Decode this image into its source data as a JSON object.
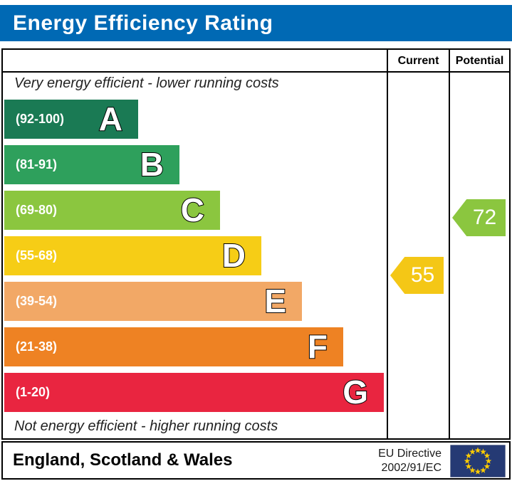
{
  "header": {
    "title": "Energy Efficiency Rating",
    "bg_color": "#0069b4"
  },
  "table": {
    "columns": {
      "current": "Current",
      "potential": "Potential"
    },
    "top_note": "Very energy efficient - lower running costs",
    "bottom_note": "Not energy efficient - higher running costs",
    "bands": [
      {
        "letter": "A",
        "range": "(92-100)",
        "color": "#1a7a54"
      },
      {
        "letter": "B",
        "range": "(81-91)",
        "color": "#2ea05c"
      },
      {
        "letter": "C",
        "range": "(69-80)",
        "color": "#8bc63f"
      },
      {
        "letter": "D",
        "range": "(55-68)",
        "color": "#f6cd16"
      },
      {
        "letter": "E",
        "range": "(39-54)",
        "color": "#f2a866"
      },
      {
        "letter": "F",
        "range": "(21-38)",
        "color": "#ee8223"
      },
      {
        "letter": "G",
        "range": "(1-20)",
        "color": "#e92540"
      }
    ],
    "current": {
      "value": "55",
      "color": "#f4c716",
      "band": "D"
    },
    "potential": {
      "value": "72",
      "color": "#8bc63f",
      "band": "C"
    }
  },
  "footer": {
    "region": "England, Scotland & Wales",
    "directive_line1": "EU Directive",
    "directive_line2": "2002/91/EC",
    "flag": {
      "name": "eu-flag",
      "bg": "#253a74",
      "star_color": "#ffcc00"
    }
  },
  "chart_data": {
    "type": "bar",
    "title": "Energy Efficiency Rating",
    "categories": [
      "A",
      "B",
      "C",
      "D",
      "E",
      "F",
      "G"
    ],
    "ranges": [
      "92-100",
      "81-91",
      "69-80",
      "55-68",
      "39-54",
      "21-38",
      "1-20"
    ],
    "colors": [
      "#1a7a54",
      "#2ea05c",
      "#8bc63f",
      "#f6cd16",
      "#f2a866",
      "#ee8223",
      "#e92540"
    ],
    "current_rating": 55,
    "current_band": "D",
    "potential_rating": 72,
    "potential_band": "C",
    "annotations": [
      "Very energy efficient - lower running costs",
      "Not energy efficient - higher running costs"
    ],
    "legend_position": "none",
    "region": "England, Scotland & Wales",
    "directive": "EU Directive 2002/91/EC"
  }
}
